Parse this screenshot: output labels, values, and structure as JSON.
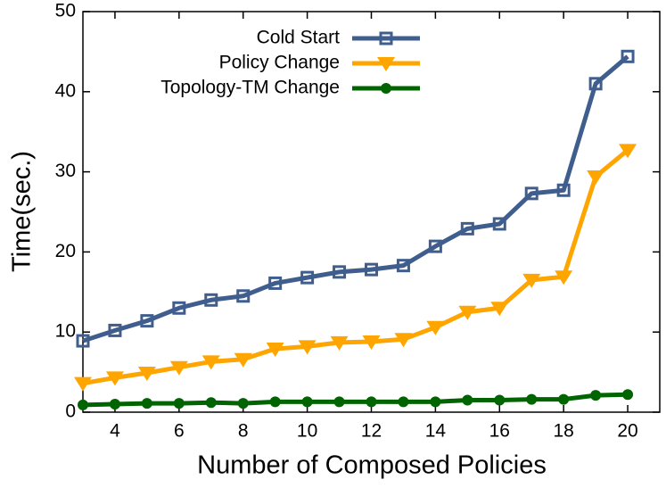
{
  "chart_data": {
    "type": "line",
    "xlabel": "Number of Composed Policies",
    "ylabel": "Time(sec.)",
    "x": [
      3,
      4,
      5,
      6,
      7,
      8,
      9,
      10,
      11,
      12,
      13,
      14,
      15,
      16,
      17,
      18,
      19,
      20
    ],
    "series": [
      {
        "name": "Cold Start",
        "color": "#3f5e8e",
        "marker": "square-open",
        "values": [
          8.9,
          10.2,
          11.4,
          13.0,
          14.0,
          14.5,
          16.1,
          16.8,
          17.5,
          17.8,
          18.3,
          20.7,
          22.9,
          23.5,
          27.3,
          27.7,
          41.0,
          44.4
        ]
      },
      {
        "name": "Policy Change",
        "color": "#ffa500",
        "marker": "triangle-down",
        "values": [
          3.6,
          4.3,
          4.9,
          5.6,
          6.3,
          6.6,
          7.9,
          8.2,
          8.7,
          8.8,
          9.1,
          10.6,
          12.5,
          13.0,
          16.5,
          16.9,
          29.4,
          32.7
        ]
      },
      {
        "name": "Topology-TM Change",
        "color": "#006400",
        "marker": "circle",
        "values": [
          0.9,
          1.0,
          1.1,
          1.1,
          1.2,
          1.1,
          1.3,
          1.3,
          1.3,
          1.3,
          1.3,
          1.3,
          1.5,
          1.5,
          1.6,
          1.6,
          2.1,
          2.2
        ]
      }
    ],
    "xlim": [
      3,
      21
    ],
    "xticks": [
      4,
      6,
      8,
      10,
      12,
      14,
      16,
      18,
      20
    ],
    "ylim": [
      0,
      50
    ],
    "yticks": [
      0,
      10,
      20,
      30,
      40,
      50
    ],
    "legend": "top-center"
  }
}
